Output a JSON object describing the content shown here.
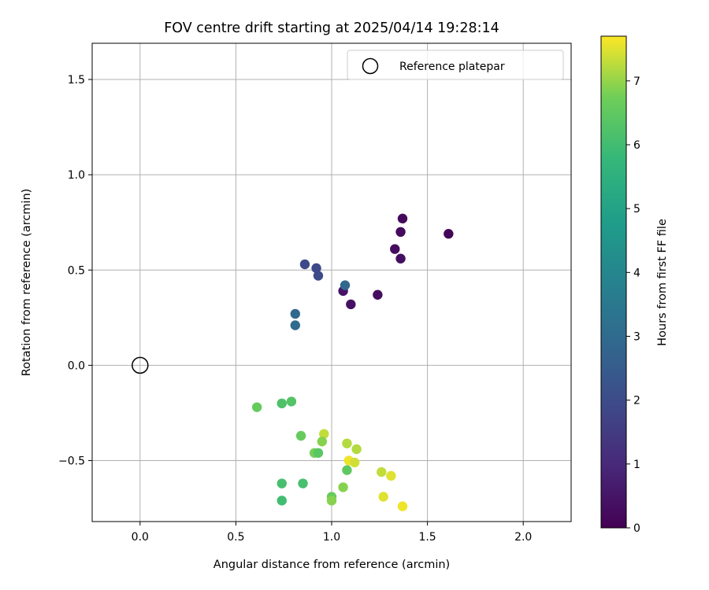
{
  "chart_data": {
    "type": "scatter",
    "title": "FOV centre drift starting at 2025/04/14 19:28:14",
    "xlabel": "Angular distance from reference (arcmin)",
    "ylabel": "Rotation from reference (arcmin)",
    "xlim": [
      -0.25,
      2.25
    ],
    "ylim": [
      -0.82,
      1.69
    ],
    "xticks": [
      0.0,
      0.5,
      1.0,
      1.5,
      2.0
    ],
    "xtick_labels": [
      "0.0",
      "0.5",
      "1.0",
      "1.5",
      "2.0"
    ],
    "yticks": [
      -0.5,
      0.0,
      0.5,
      1.0,
      1.5
    ],
    "ytick_labels": [
      "−0.5",
      "0.0",
      "0.5",
      "1.0",
      "1.5"
    ],
    "grid": true,
    "legend": {
      "position": "top-right",
      "entries": [
        "Reference platepar"
      ]
    },
    "reference_point": {
      "x": 0.0,
      "y": 0.0
    },
    "colormap": "viridis",
    "colorbar": {
      "label": "Hours from first FF file",
      "range": [
        0,
        7.7
      ],
      "ticks": [
        0,
        1,
        2,
        3,
        4,
        5,
        6,
        7
      ],
      "tick_labels": [
        "0",
        "1",
        "2",
        "3",
        "4",
        "5",
        "6",
        "7"
      ]
    },
    "points": [
      {
        "x": 1.37,
        "y": 0.77,
        "c": 0.2
      },
      {
        "x": 1.36,
        "y": 0.7,
        "c": 0.25
      },
      {
        "x": 1.61,
        "y": 0.69,
        "c": 0.1
      },
      {
        "x": 1.33,
        "y": 0.61,
        "c": 0.3
      },
      {
        "x": 1.36,
        "y": 0.56,
        "c": 0.35
      },
      {
        "x": 1.06,
        "y": 0.39,
        "c": 0.45
      },
      {
        "x": 1.1,
        "y": 0.32,
        "c": 0.4
      },
      {
        "x": 1.24,
        "y": 0.37,
        "c": 0.3
      },
      {
        "x": 0.86,
        "y": 0.53,
        "c": 1.9
      },
      {
        "x": 0.92,
        "y": 0.51,
        "c": 1.9
      },
      {
        "x": 0.93,
        "y": 0.47,
        "c": 1.95
      },
      {
        "x": 1.07,
        "y": 0.42,
        "c": 2.9
      },
      {
        "x": 0.81,
        "y": 0.27,
        "c": 2.9
      },
      {
        "x": 0.81,
        "y": 0.21,
        "c": 2.95
      },
      {
        "x": 0.61,
        "y": -0.22,
        "c": 6.6
      },
      {
        "x": 0.74,
        "y": -0.2,
        "c": 6.2
      },
      {
        "x": 0.79,
        "y": -0.19,
        "c": 6.3
      },
      {
        "x": 0.84,
        "y": -0.37,
        "c": 6.6
      },
      {
        "x": 0.96,
        "y": -0.36,
        "c": 7.3
      },
      {
        "x": 0.95,
        "y": -0.4,
        "c": 6.9
      },
      {
        "x": 0.91,
        "y": -0.46,
        "c": 6.8
      },
      {
        "x": 0.93,
        "y": -0.46,
        "c": 6.4
      },
      {
        "x": 1.08,
        "y": -0.41,
        "c": 7.2
      },
      {
        "x": 1.13,
        "y": -0.44,
        "c": 7.2
      },
      {
        "x": 1.09,
        "y": -0.5,
        "c": 7.6
      },
      {
        "x": 1.12,
        "y": -0.51,
        "c": 7.4
      },
      {
        "x": 1.08,
        "y": -0.55,
        "c": 6.5
      },
      {
        "x": 1.26,
        "y": -0.56,
        "c": 7.3
      },
      {
        "x": 1.31,
        "y": -0.58,
        "c": 7.5
      },
      {
        "x": 0.74,
        "y": -0.62,
        "c": 6.1
      },
      {
        "x": 0.85,
        "y": -0.62,
        "c": 6.1
      },
      {
        "x": 1.06,
        "y": -0.64,
        "c": 6.9
      },
      {
        "x": 0.74,
        "y": -0.71,
        "c": 6.0
      },
      {
        "x": 1.0,
        "y": -0.69,
        "c": 6.6
      },
      {
        "x": 1.0,
        "y": -0.71,
        "c": 6.9
      },
      {
        "x": 1.27,
        "y": -0.69,
        "c": 7.5
      },
      {
        "x": 1.37,
        "y": -0.74,
        "c": 7.6
      }
    ]
  }
}
